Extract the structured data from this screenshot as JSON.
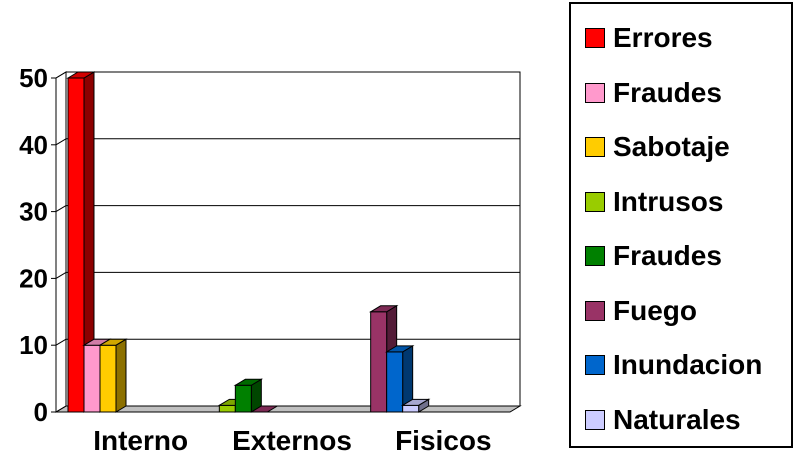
{
  "chart_data": {
    "type": "bar",
    "title": "",
    "xlabel": "",
    "ylabel": "",
    "ylim": [
      0,
      50
    ],
    "yticks": [
      "0",
      "10",
      "20",
      "30",
      "40",
      "50"
    ],
    "categories": [
      "Interno",
      "Externos",
      "Fisicos"
    ],
    "grid": true,
    "legend_position": "right",
    "series": [
      {
        "name": "Errores",
        "color": "#ff0000",
        "values": [
          50,
          0,
          0
        ]
      },
      {
        "name": "Fraudes",
        "color": "#ff99cc",
        "values": [
          10,
          0,
          0
        ]
      },
      {
        "name": "Sabotaje",
        "color": "#ffcc00",
        "values": [
          10,
          0,
          0
        ]
      },
      {
        "name": "Intrusos",
        "color": "#99cc00",
        "values": [
          0,
          1,
          0
        ]
      },
      {
        "name": "Fraudes",
        "color": "#008000",
        "values": [
          0,
          4,
          0
        ]
      },
      {
        "name": "Fuego",
        "color": "#993366",
        "values": [
          0,
          0,
          15
        ]
      },
      {
        "name": "Inundacion",
        "color": "#0066cc",
        "values": [
          0,
          0,
          9
        ]
      },
      {
        "name": "Naturales",
        "color": "#ccccff",
        "values": [
          0,
          0,
          1
        ]
      }
    ]
  }
}
